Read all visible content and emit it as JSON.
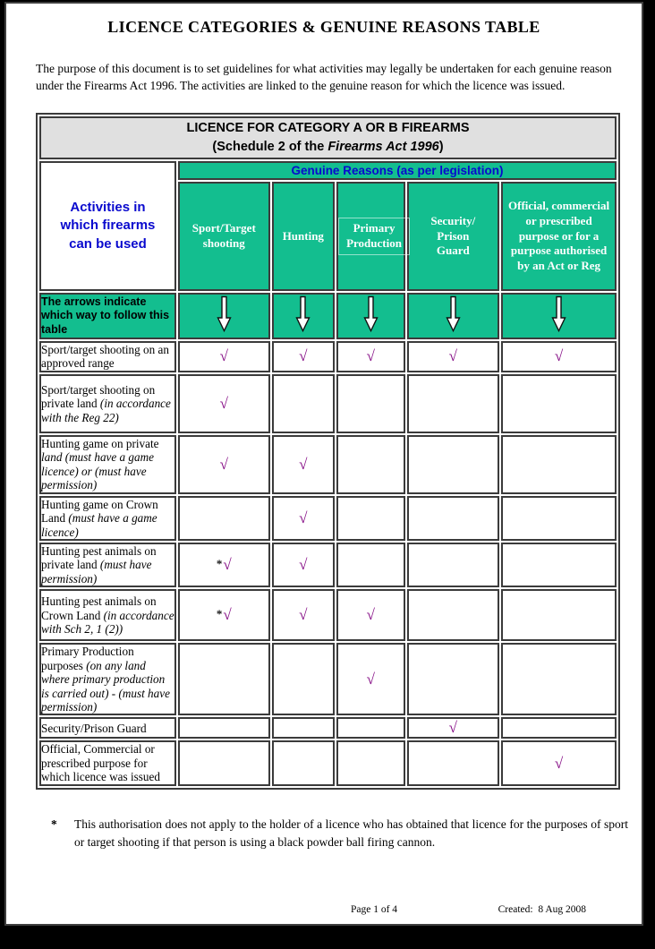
{
  "page": {
    "title": "LICENCE CATEGORIES & GENUINE REASONS TABLE",
    "intro": "The purpose of this document is to set guidelines for what activities may legally be undertaken for each genuine reason under the Firearms Act 1996. The activities are linked to the genuine reason for which the licence was issued.",
    "footnote_marker": "*",
    "footnote": "This authorisation does not apply to the holder of a licence who has obtained that licence for the purposes of sport or target shooting if that person is using a black powder ball firing cannon.",
    "footer": {
      "page_number": "Page 1 of 4",
      "created": "Created:  8 Aug 2008"
    }
  },
  "table": {
    "header_line1": "LICENCE FOR CATEGORY A OR B FIREARMS",
    "header_line2_prefix": "(Schedule 2 of the ",
    "header_line2_italic": "Firearms Act 1996",
    "header_line2_suffix": ")",
    "genuine_reasons_label": "Genuine Reasons (as per legislation)",
    "activities_label": "Activities in which firearms can be used",
    "arrows_label": "The arrows indicate which way to follow this table",
    "arrow_icon": "down-arrow",
    "check_symbol": "√",
    "columns": [
      "Sport/Target shooting",
      "Hunting",
      "Primary Production",
      "Security/ Prison Guard",
      "Official, commercial or prescribed purpose or for a purpose authorised by an Act or Reg"
    ],
    "rows": [
      {
        "activity_plain": "Sport/target shooting on an approved range",
        "activity_italic": "",
        "checks": [
          "√",
          "√",
          "√",
          "√",
          "√"
        ]
      },
      {
        "activity_plain": "Sport/target shooting on private land ",
        "activity_italic": "(in accordance with the Reg 22)",
        "checks": [
          "√",
          "",
          "",
          "",
          ""
        ]
      },
      {
        "activity_plain": "Hunting game on private ",
        "activity_italic": "land (must have a game licence) or (must have permission)",
        "checks": [
          "√",
          "√",
          "",
          "",
          ""
        ]
      },
      {
        "activity_plain": "Hunting game on Crown Land ",
        "activity_italic": "(must have a game licence)",
        "checks": [
          "",
          "√",
          "",
          "",
          ""
        ]
      },
      {
        "activity_plain": "Hunting pest animals on private land ",
        "activity_italic": "(must have permission)",
        "checks": [
          "*√",
          "√",
          "",
          "",
          ""
        ]
      },
      {
        "activity_plain": "Hunting pest animals on Crown Land ",
        "activity_italic": "(in accordance with Sch 2, 1 (2))",
        "checks": [
          "*√",
          "√",
          "√",
          "",
          ""
        ]
      },
      {
        "activity_plain": "Primary Production purposes ",
        "activity_italic": "(on any land where primary production is carried out) - (must have permission)",
        "checks": [
          "",
          "",
          "√",
          "",
          ""
        ]
      },
      {
        "activity_plain": "Security/Prison Guard",
        "activity_italic": "",
        "checks": [
          "",
          "",
          "",
          "√",
          ""
        ]
      },
      {
        "activity_plain": "Official, Commercial or prescribed purpose for which licence was issued",
        "activity_italic": "",
        "checks": [
          "",
          "",
          "",
          "",
          "√"
        ]
      }
    ]
  },
  "colors": {
    "green": "#13BE8F",
    "blue": "#0909CE",
    "check_purple": "#850C85",
    "header_grey": "#E0E0E0"
  }
}
